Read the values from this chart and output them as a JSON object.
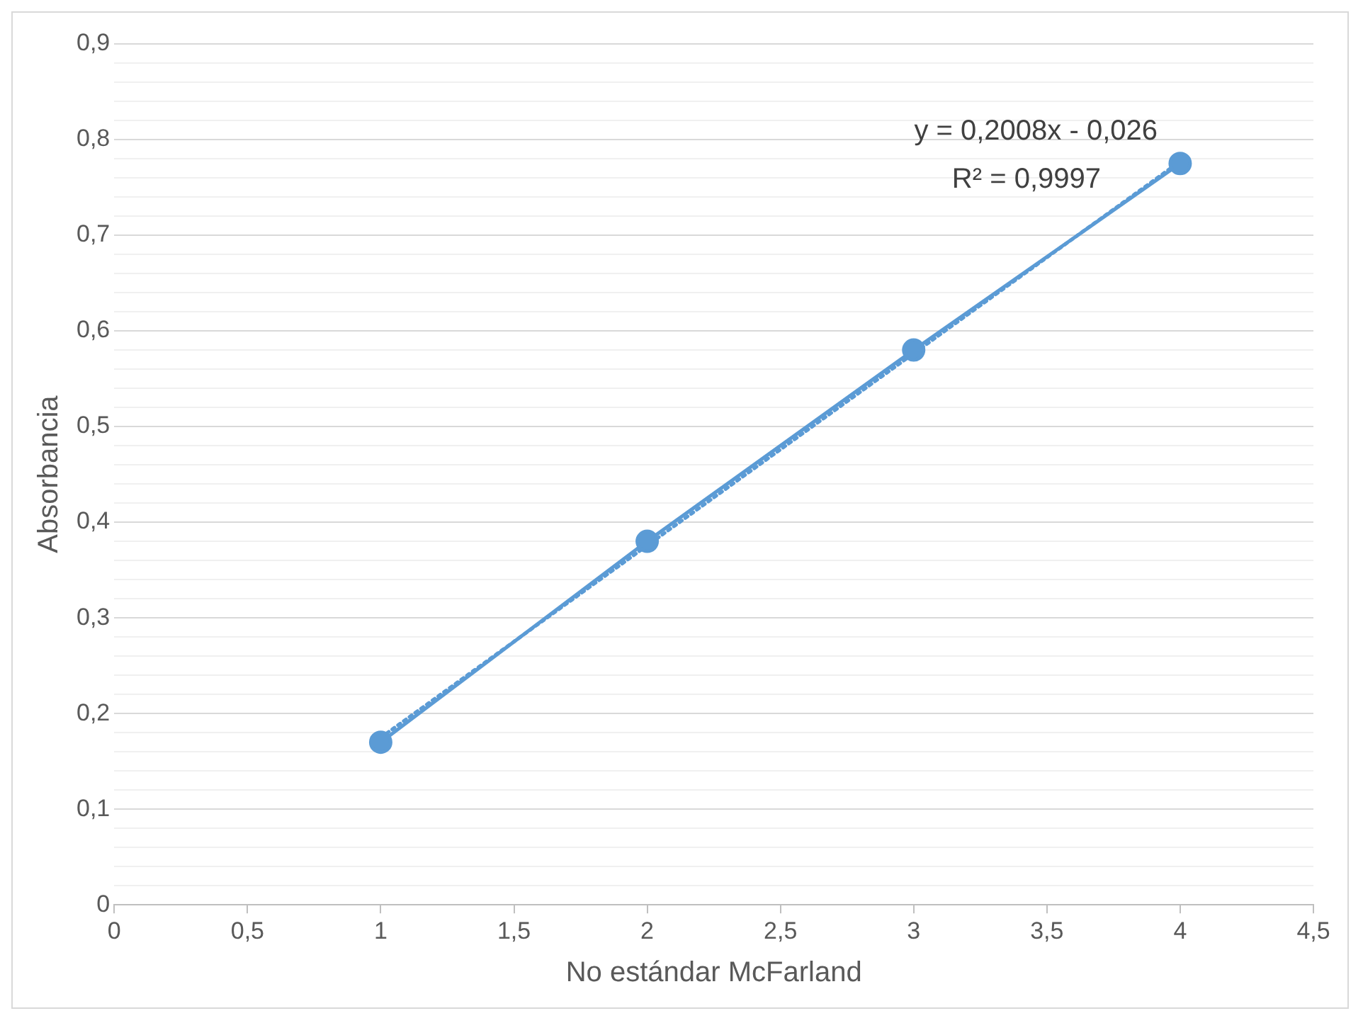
{
  "chart_data": {
    "type": "line",
    "xlabel": "No estándar McFarland",
    "ylabel": "Absorbancia",
    "annotations": [
      "y = 0,2008x - 0,026",
      "R² = 0,9997"
    ],
    "xlim": [
      0,
      4.5
    ],
    "xticks": [
      0,
      {
        "value": 0.5,
        "label": "0,5"
      },
      1,
      {
        "value": 1.5,
        "label": "1,5"
      },
      2,
      {
        "value": 2.5,
        "label": "2,5"
      },
      3,
      {
        "value": 3.5,
        "label": "3,5"
      },
      4,
      {
        "value": 4.5,
        "label": "4,5"
      }
    ],
    "ylim": [
      0,
      0.9
    ],
    "yticks": [
      0,
      {
        "value": 0.02,
        "label": null
      },
      {
        "value": 0.04,
        "label": null
      },
      {
        "value": 0.06,
        "label": null
      },
      {
        "value": 0.08,
        "label": null
      },
      {
        "value": 0.1,
        "label": "0,1"
      },
      {
        "value": 0.12,
        "label": null
      },
      {
        "value": 0.14,
        "label": null
      },
      {
        "value": 0.16,
        "label": null
      },
      {
        "value": 0.18,
        "label": null
      },
      {
        "value": 0.2,
        "label": "0,2"
      },
      {
        "value": 0.22,
        "label": null
      },
      {
        "value": 0.24,
        "label": null
      },
      {
        "value": 0.26,
        "label": null
      },
      {
        "value": 0.28,
        "label": null
      },
      {
        "value": 0.3,
        "label": "0,3"
      },
      {
        "value": 0.32,
        "label": null
      },
      {
        "value": 0.34,
        "label": null
      },
      {
        "value": 0.36,
        "label": null
      },
      {
        "value": 0.38,
        "label": null
      },
      {
        "value": 0.4,
        "label": "0,4"
      },
      {
        "value": 0.42,
        "label": null
      },
      {
        "value": 0.44,
        "label": null
      },
      {
        "value": 0.46,
        "label": null
      },
      {
        "value": 0.48,
        "label": null
      },
      {
        "value": 0.5,
        "label": "0,5"
      },
      {
        "value": 0.52,
        "label": null
      },
      {
        "value": 0.54,
        "label": null
      },
      {
        "value": 0.56,
        "label": null
      },
      {
        "value": 0.58,
        "label": null
      },
      {
        "value": 0.6,
        "label": "0,6"
      },
      {
        "value": 0.62,
        "label": null
      },
      {
        "value": 0.64,
        "label": null
      },
      {
        "value": 0.66,
        "label": null
      },
      {
        "value": 0.68,
        "label": null
      },
      {
        "value": 0.7,
        "label": "0,7"
      },
      {
        "value": 0.72,
        "label": null
      },
      {
        "value": 0.74,
        "label": null
      },
      {
        "value": 0.76,
        "label": null
      },
      {
        "value": 0.78,
        "label": null
      },
      {
        "value": 0.8,
        "label": "0,8"
      },
      {
        "value": 0.82,
        "label": null
      },
      {
        "value": 0.84,
        "label": null
      },
      {
        "value": 0.86,
        "label": null
      },
      {
        "value": 0.88,
        "label": null
      },
      {
        "value": 0.9,
        "label": "0,9"
      }
    ],
    "grid": "y",
    "legend": false,
    "series": [
      {
        "color": "#5b9bd5",
        "x": [
          1,
          2,
          3,
          4
        ],
        "values": [
          0.17,
          0.38,
          0.58,
          0.775
        ],
        "marker": "circle",
        "line_style": "solid"
      },
      {
        "color": "#5b9bd5",
        "x": [
          1,
          4
        ],
        "values": [
          0.1748,
          0.7772
        ],
        "marker": "none",
        "line_style": "dotted"
      }
    ]
  }
}
